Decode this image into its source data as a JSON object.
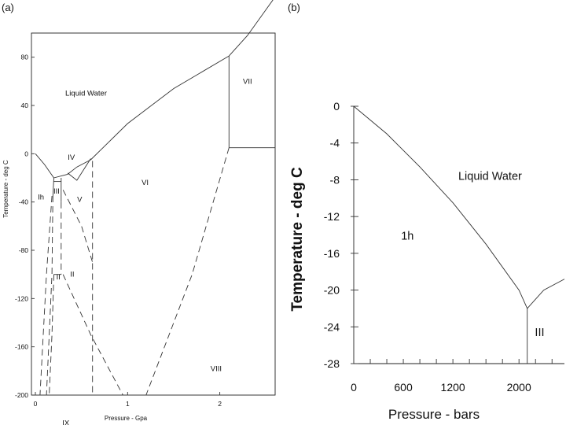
{
  "chart_data": [
    {
      "panel": "(a)",
      "type": "line",
      "xlabel": "Pressure - Gpa",
      "ylabel": "Temperature - deg C",
      "xlim": [
        0,
        2.6
      ],
      "ylim": [
        -200,
        100
      ],
      "xticks": [
        0,
        1,
        2
      ],
      "yticks": [
        80,
        40,
        0,
        -40,
        -80,
        -120,
        -160,
        -200
      ],
      "phase_labels": [
        {
          "text": "Liquid Water",
          "x": 0.55,
          "y": 48
        },
        {
          "text": "Ih",
          "x": 0.06,
          "y": -38
        },
        {
          "text": "III",
          "x": 0.23,
          "y": -33
        },
        {
          "text": "IV",
          "x": 0.39,
          "y": -5
        },
        {
          "text": "V",
          "x": 0.48,
          "y": -40
        },
        {
          "text": "VI",
          "x": 1.19,
          "y": -26
        },
        {
          "text": "VII",
          "x": 2.3,
          "y": 58
        },
        {
          "text": "II",
          "x": 0.25,
          "y": -104
        },
        {
          "text": "II",
          "x": 0.4,
          "y": -102
        },
        {
          "text": "VIII",
          "x": 1.96,
          "y": -180
        },
        {
          "text": "IX",
          "x": 0.33,
          "y": -225
        }
      ],
      "solid_boundaries": [
        {
          "name": "Ih-liquid melting curve",
          "points": [
            [
              0,
              0
            ],
            [
              0.1,
              -9
            ],
            [
              0.2,
              -20
            ]
          ]
        },
        {
          "name": "liquid boundary of III and V",
          "points": [
            [
              0.2,
              -20
            ],
            [
              0.3,
              -18
            ],
            [
              0.35,
              -17
            ]
          ]
        },
        {
          "name": "liquid boundary of IV",
          "points": [
            [
              0.35,
              -17
            ],
            [
              0.45,
              -11
            ],
            [
              0.6,
              -5
            ]
          ]
        },
        {
          "name": "VI-liquid melting curve",
          "points": [
            [
              0.6,
              -5
            ],
            [
              1.0,
              25
            ],
            [
              1.5,
              54
            ],
            [
              2.1,
              81
            ]
          ]
        },
        {
          "name": "VII-liquid melting curve",
          "points": [
            [
              2.1,
              81
            ],
            [
              2.3,
              98
            ],
            [
              2.6,
              130
            ]
          ]
        },
        {
          "name": "VI-VII boundary",
          "points": [
            [
              2.1,
              81
            ],
            [
              2.1,
              5
            ]
          ]
        },
        {
          "name": "VII-VIII boundary",
          "points": [
            [
              2.1,
              5
            ],
            [
              2.6,
              5
            ]
          ]
        },
        {
          "name": "Ih-III boundary",
          "points": [
            [
              0.2,
              -20
            ],
            [
              0.19,
              -35
            ]
          ]
        },
        {
          "name": "III-II boundary",
          "points": [
            [
              0.2,
              -23
            ],
            [
              0.28,
              -23
            ]
          ]
        },
        {
          "name": "III-V boundary",
          "points": [
            [
              0.28,
              -20
            ],
            [
              0.28,
              -40
            ]
          ]
        },
        {
          "name": "IV-V boundary",
          "points": [
            [
              0.35,
              -16
            ],
            [
              0.45,
              -22
            ],
            [
              0.6,
              -4
            ]
          ]
        },
        {
          "name": "II stability bracket",
          "points": [
            [
              0.2,
              -100
            ],
            [
              0.28,
              -100
            ]
          ]
        }
      ],
      "dashed_boundaries": [
        {
          "name": "Ih-II",
          "points": [
            [
              0.18,
              -35
            ],
            [
              0.12,
              -100
            ],
            [
              0.05,
              -200
            ]
          ]
        },
        {
          "name": "II-left",
          "points": [
            [
              0.19,
              -35
            ],
            [
              0.18,
              -100
            ],
            [
              0.12,
              -200
            ]
          ]
        },
        {
          "name": "II-IX",
          "points": [
            [
              0.2,
              -100
            ],
            [
              0.18,
              -150
            ],
            [
              0.15,
              -200
            ]
          ]
        },
        {
          "name": "II-V",
          "points": [
            [
              0.28,
              -40
            ],
            [
              0.28,
              -100
            ]
          ]
        },
        {
          "name": "V-VI",
          "points": [
            [
              0.62,
              -6
            ],
            [
              0.62,
              -200
            ]
          ]
        },
        {
          "name": "VI-II",
          "points": [
            [
              0.3,
              -30
            ],
            [
              0.5,
              -60
            ],
            [
              0.62,
              -90
            ]
          ]
        },
        {
          "name": "IX-VIII",
          "points": [
            [
              0.3,
              -100
            ],
            [
              0.6,
              -150
            ],
            [
              0.95,
              -200
            ]
          ]
        },
        {
          "name": "VI-VIII",
          "points": [
            [
              2.1,
              5
            ],
            [
              1.7,
              -100
            ],
            [
              1.2,
              -200
            ]
          ]
        }
      ]
    },
    {
      "panel": "(b)",
      "type": "line",
      "xlabel": "Pressure - bars",
      "ylabel": "Temperature - deg C",
      "xlim": [
        0,
        2550
      ],
      "ylim": [
        -28,
        0
      ],
      "xticks": [
        0,
        600,
        1200,
        2000
      ],
      "yticks": [
        0,
        -4,
        -8,
        -12,
        -16,
        -20,
        -24,
        -28
      ],
      "phase_labels": [
        {
          "text": "Liquid Water",
          "x": 1650,
          "y": -8
        },
        {
          "text": "1h",
          "x": 650,
          "y": -14.5
        },
        {
          "text": "III",
          "x": 2250,
          "y": -25
        },
        {
          "text": "1h",
          "x": 0,
          "y": 0
        }
      ],
      "series": [
        {
          "name": "Ih melting curve",
          "x": [
            0,
            400,
            800,
            1200,
            1600,
            2000,
            2100
          ],
          "y": [
            0,
            -3,
            -6.6,
            -10.5,
            -15,
            -20,
            -22
          ]
        },
        {
          "name": "III melting curve",
          "x": [
            2100,
            2300,
            2550
          ],
          "y": [
            -22,
            -20,
            -18.8
          ]
        },
        {
          "name": "Ih-III boundary",
          "x": [
            2100,
            2100
          ],
          "y": [
            -22,
            -28
          ]
        }
      ]
    }
  ]
}
